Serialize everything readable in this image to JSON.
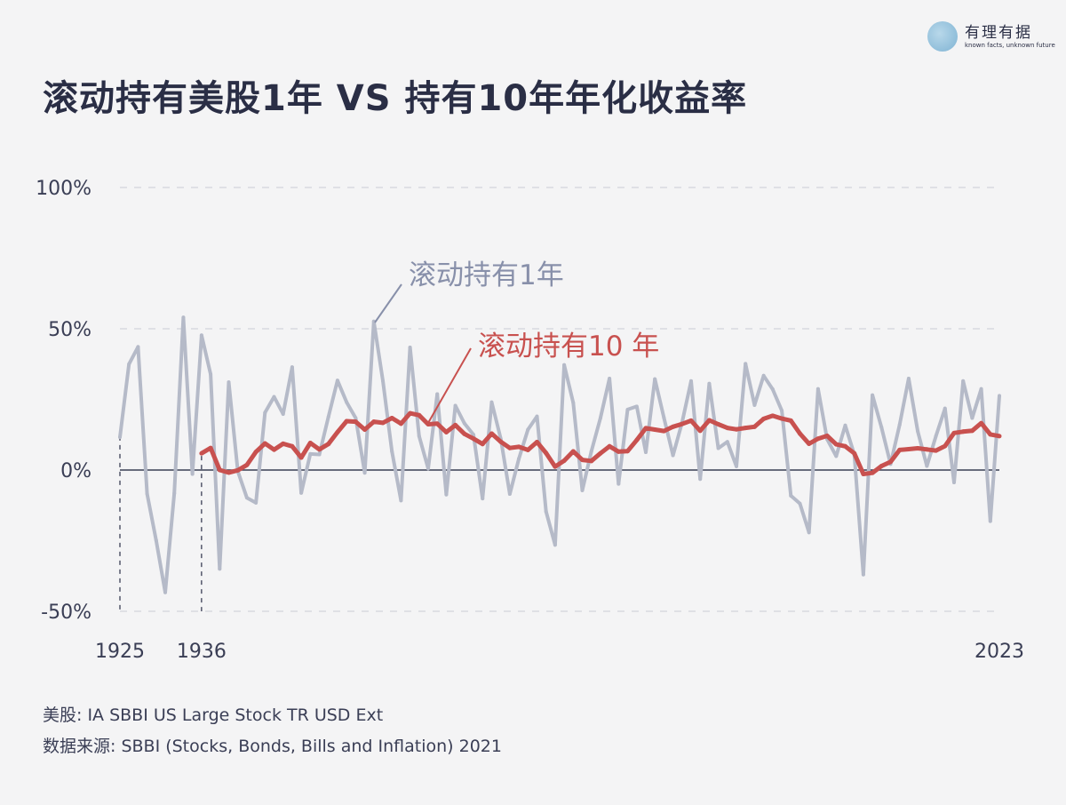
{
  "title": "滚动持有美股1年 VS 持有10年年化收益率",
  "logo": {
    "name": "有理有据",
    "tagline": "known facts, unknown future"
  },
  "footnotes": [
    "美股: IA SBBI US Large Stock TR USD Ext",
    "数据来源: SBBI (Stocks, Bonds, Bills and Inflation) 2021"
  ],
  "colors": {
    "one_year": "#b5bac8",
    "ten_year": "#c8514f",
    "one_year_label": "#8890aa",
    "axis": "#3a3e55",
    "grid": "#d8d9e0"
  },
  "chart_data": {
    "type": "line",
    "title": "滚动持有美股1年 VS 持有10年年化收益率",
    "xlabel": "",
    "ylabel": "",
    "ylim": [
      -50,
      100
    ],
    "xlim": [
      1926,
      2023
    ],
    "y_ticks": [
      {
        "value": 100,
        "label": "100%"
      },
      {
        "value": 50,
        "label": "50%"
      },
      {
        "value": 0,
        "label": "0%"
      },
      {
        "value": -50,
        "label": "-50%"
      }
    ],
    "x_ticks": [
      {
        "value": 1926,
        "label": "1925"
      },
      {
        "value": 1935,
        "label": "1936"
      },
      {
        "value": 2023,
        "label": "2023"
      }
    ],
    "grid": true,
    "annotations": [
      {
        "text": "滚动持有1年",
        "series": 0
      },
      {
        "text": "滚动持有10 年",
        "series": 1
      }
    ],
    "series": [
      {
        "name": "滚动持有1年",
        "start_year": 1926,
        "values": [
          11.6,
          37.5,
          43.6,
          -8.4,
          -24.9,
          -43.3,
          -8.2,
          54.0,
          -1.4,
          47.7,
          33.9,
          -35.0,
          31.1,
          -0.4,
          -9.8,
          -11.6,
          20.3,
          25.9,
          19.8,
          36.4,
          -8.1,
          5.7,
          5.5,
          18.8,
          31.7,
          24.0,
          18.4,
          -1.0,
          52.6,
          31.6,
          6.6,
          -10.8,
          43.4,
          12.0,
          0.5,
          26.9,
          -8.7,
          22.8,
          16.5,
          12.5,
          -10.1,
          24.0,
          11.1,
          -8.5,
          4.0,
          14.3,
          19.0,
          -14.7,
          -26.5,
          37.2,
          23.8,
          -7.2,
          6.6,
          18.4,
          32.4,
          -4.9,
          21.4,
          22.5,
          6.3,
          32.2,
          18.5,
          5.2,
          16.8,
          31.5,
          -3.2,
          30.6,
          7.7,
          10.0,
          1.3,
          37.6,
          23.0,
          33.4,
          28.6,
          21.0,
          -9.1,
          -11.9,
          -22.1,
          28.7,
          10.9,
          4.9,
          15.8,
          5.5,
          -37.0,
          26.5,
          15.1,
          2.1,
          16.0,
          32.4,
          13.7,
          1.4,
          12.0,
          21.8,
          -4.4,
          31.5,
          18.4,
          28.7,
          -18.1,
          26.3
        ]
      },
      {
        "name": "滚动持有10 年",
        "start_year": 1935,
        "values": [
          5.9,
          7.8,
          0.0,
          -0.9,
          -0.1,
          1.8,
          6.4,
          9.4,
          7.2,
          9.3,
          8.4,
          4.4,
          9.6,
          7.3,
          9.2,
          13.4,
          17.3,
          17.1,
          14.3,
          17.1,
          16.7,
          18.4,
          16.4,
          20.1,
          19.4,
          16.2,
          16.4,
          13.4,
          15.9,
          12.8,
          11.1,
          9.2,
          12.9,
          10.0,
          7.8,
          8.2,
          7.1,
          9.9,
          6.0,
          1.2,
          3.3,
          6.6,
          3.6,
          3.2,
          5.9,
          8.4,
          6.5,
          6.7,
          10.6,
          14.8,
          14.3,
          13.8,
          15.3,
          16.3,
          17.5,
          13.9,
          17.6,
          16.2,
          14.9,
          14.4,
          14.9,
          15.3,
          18.1,
          19.2,
          18.2,
          17.5,
          12.9,
          9.3,
          11.1,
          12.1,
          9.1,
          8.4,
          5.9,
          -1.4,
          -1.0,
          1.4,
          2.9,
          7.1,
          7.4,
          7.7,
          7.3,
          6.9,
          8.5,
          13.1,
          13.6,
          13.9,
          16.6,
          12.6,
          12.0
        ]
      }
    ]
  }
}
